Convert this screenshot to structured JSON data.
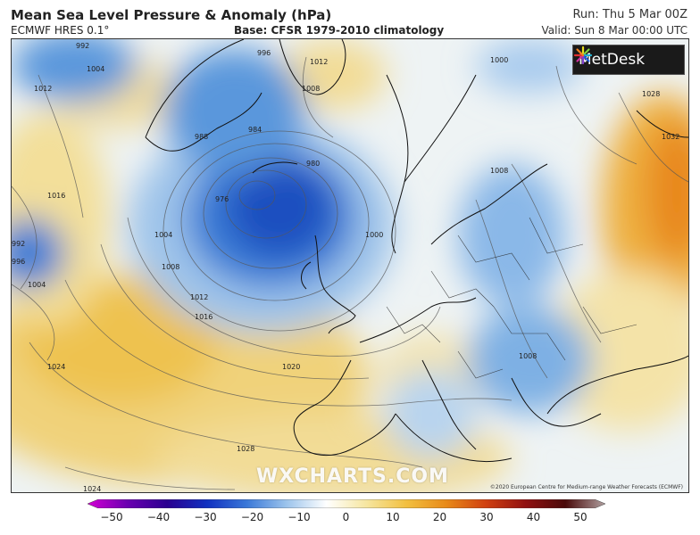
{
  "header": {
    "title": "Mean Sea Level Pressure & Anomaly (hPa)",
    "model": "ECMWF HRES 0.1°",
    "base": "Base: CFSR 1979-2010 climatology",
    "run": "Run: Thu 5 Mar 00Z",
    "valid": "Valid: Sun 8 Mar 00:00 UTC"
  },
  "logo": {
    "text": "MetDesk"
  },
  "watermark": "WXCHARTS.COM",
  "copyright": "©2020 European Centre for Medium-range Weather Forecasts (ECMWF)",
  "isobar_labels": [
    "992",
    "996",
    "1004",
    "1012",
    "1008",
    "1016",
    "1000",
    "1028",
    "1032",
    "1004",
    "1008",
    "1012",
    "1016",
    "1020",
    "1024",
    "1028",
    "1024",
    "988",
    "984",
    "980",
    "976",
    "996",
    "1000",
    "1008",
    "1008"
  ],
  "colorbar": {
    "ticks": [
      "−50",
      "−40",
      "−30",
      "−20",
      "−10",
      "0",
      "10",
      "20",
      "30",
      "40",
      "50"
    ],
    "colors": [
      "#d400d4",
      "#6a00b0",
      "#2a0090",
      "#1030c0",
      "#3a78d8",
      "#9cc4ec",
      "#ffffff",
      "#f6e6a0",
      "#f2c040",
      "#e88a18",
      "#d04010",
      "#901010",
      "#4a0a0a",
      "#b0a0a0"
    ]
  }
}
